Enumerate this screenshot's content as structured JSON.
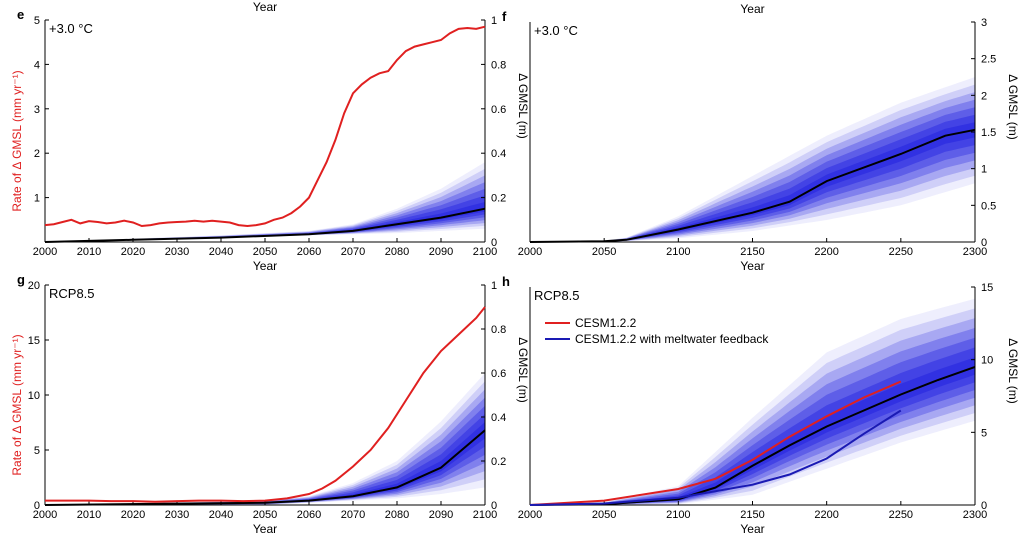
{
  "colors": {
    "rate": "#e02020",
    "median": "#000000",
    "band": "#2020e0",
    "meltwater": "#1a1ab4"
  },
  "chart_data": [
    {
      "id": "e",
      "panel_letter": "e",
      "title": "+3.0 °C",
      "type": "line",
      "xlabel": "Year",
      "top_label": "Year",
      "ylabel_left": "Rate of Δ GMSL (mm yr⁻¹)",
      "ylabel_right": "Δ GMSL (m)",
      "xlim": [
        2000,
        2100
      ],
      "ylim_left": [
        0,
        5
      ],
      "ylim_right": [
        0,
        1
      ],
      "x_ticks": [
        "2000",
        "2010",
        "2020",
        "2030",
        "2040",
        "2050",
        "2060",
        "2070",
        "2080",
        "2090",
        "2100"
      ],
      "y_left_ticks": [
        "1",
        "2",
        "3",
        "4",
        "5"
      ],
      "y_right_ticks": [
        "0",
        "0.2",
        "0.4",
        "0.6",
        "0.8",
        "1"
      ],
      "rate_series": {
        "axis": "left",
        "x": [
          2000,
          2002,
          2004,
          2006,
          2008,
          2010,
          2012,
          2014,
          2016,
          2018,
          2020,
          2022,
          2024,
          2026,
          2028,
          2030,
          2032,
          2034,
          2036,
          2038,
          2040,
          2042,
          2044,
          2046,
          2048,
          2050,
          2052,
          2054,
          2056,
          2058,
          2060,
          2062,
          2064,
          2066,
          2068,
          2070,
          2072,
          2074,
          2076,
          2078,
          2080,
          2082,
          2084,
          2086,
          2088,
          2090,
          2092,
          2094,
          2096,
          2098,
          2100
        ],
        "y": [
          0.38,
          0.4,
          0.45,
          0.5,
          0.42,
          0.47,
          0.45,
          0.42,
          0.44,
          0.48,
          0.44,
          0.36,
          0.38,
          0.42,
          0.44,
          0.45,
          0.46,
          0.48,
          0.46,
          0.48,
          0.46,
          0.44,
          0.38,
          0.36,
          0.38,
          0.42,
          0.5,
          0.55,
          0.65,
          0.8,
          1.0,
          1.4,
          1.8,
          2.3,
          2.9,
          3.35,
          3.55,
          3.7,
          3.8,
          3.85,
          4.1,
          4.3,
          4.4,
          4.45,
          4.5,
          4.55,
          4.7,
          4.8,
          4.82,
          4.8,
          4.85
        ]
      },
      "median": {
        "axis": "right",
        "x": [
          2000,
          2020,
          2040,
          2060,
          2070,
          2080,
          2090,
          2100
        ],
        "y": [
          0,
          0.01,
          0.02,
          0.035,
          0.05,
          0.08,
          0.11,
          0.15
        ]
      },
      "band": {
        "axis": "right",
        "x": [
          2000,
          2020,
          2040,
          2060,
          2070,
          2080,
          2090,
          2100
        ],
        "levels": [
          [
            0,
            0.01,
            0.02,
            0.03,
            0.035,
            0.04,
            0.05,
            0.06
          ],
          [
            0,
            0.015,
            0.03,
            0.05,
            0.08,
            0.15,
            0.24,
            0.36
          ]
        ]
      }
    },
    {
      "id": "f",
      "panel_letter": "f",
      "title": "+3.0 °C",
      "type": "line",
      "xlabel": "Year",
      "top_label": "Year",
      "ylabel_right": "Δ GMSL (m)",
      "xlim": [
        2000,
        2300
      ],
      "ylim_right": [
        0,
        3
      ],
      "x_ticks": [
        "2000",
        "2050",
        "2100",
        "2150",
        "2200",
        "2250",
        "2300"
      ],
      "y_right_ticks": [
        "0",
        "0.5",
        "1",
        "1.5",
        "2",
        "2.5",
        "3"
      ],
      "median": {
        "axis": "right",
        "x": [
          2000,
          2050,
          2065,
          2100,
          2150,
          2175,
          2200,
          2250,
          2280,
          2300
        ],
        "y": [
          0,
          0.01,
          0.03,
          0.17,
          0.4,
          0.55,
          0.83,
          1.2,
          1.45,
          1.53
        ]
      },
      "band": {
        "axis": "right",
        "x": [
          2000,
          2050,
          2065,
          2100,
          2150,
          2200,
          2250,
          2300
        ],
        "levels": [
          [
            0,
            0.0,
            0.01,
            0.05,
            0.15,
            0.3,
            0.5,
            0.8
          ],
          [
            0,
            0.02,
            0.06,
            0.35,
            0.9,
            1.45,
            1.9,
            2.25
          ]
        ]
      }
    },
    {
      "id": "g",
      "panel_letter": "g",
      "title": "RCP8.5",
      "type": "line",
      "xlabel": "Year",
      "ylabel_left": "Rate of Δ GMSL (mm yr⁻¹)",
      "ylabel_right": "Δ GMSL (m)",
      "xlim": [
        2000,
        2100
      ],
      "ylim_left": [
        0,
        20
      ],
      "ylim_right": [
        0,
        1
      ],
      "x_ticks": [
        "2000",
        "2010",
        "2020",
        "2030",
        "2040",
        "2050",
        "2060",
        "2070",
        "2080",
        "2090",
        "2100"
      ],
      "y_left_ticks": [
        "0",
        "5",
        "10",
        "15",
        "20"
      ],
      "y_right_ticks": [
        "0",
        "0.2",
        "0.4",
        "0.6",
        "0.8",
        "1"
      ],
      "rate_series": {
        "axis": "left",
        "x": [
          2000,
          2005,
          2010,
          2015,
          2020,
          2025,
          2030,
          2035,
          2040,
          2045,
          2050,
          2055,
          2060,
          2063,
          2066,
          2070,
          2074,
          2078,
          2082,
          2086,
          2090,
          2094,
          2098,
          2100
        ],
        "y": [
          0.4,
          0.4,
          0.4,
          0.35,
          0.35,
          0.3,
          0.35,
          0.4,
          0.4,
          0.35,
          0.4,
          0.6,
          1.0,
          1.5,
          2.2,
          3.5,
          5.0,
          7.0,
          9.5,
          12.0,
          14.0,
          15.5,
          17.0,
          18.0
        ]
      },
      "median": {
        "axis": "right",
        "x": [
          2000,
          2050,
          2060,
          2070,
          2080,
          2090,
          2100
        ],
        "y": [
          0,
          0.01,
          0.02,
          0.04,
          0.08,
          0.17,
          0.34
        ]
      },
      "band": {
        "axis": "right",
        "x": [
          2000,
          2050,
          2060,
          2070,
          2080,
          2090,
          2100
        ],
        "levels": [
          [
            0,
            0.0,
            0.01,
            0.02,
            0.03,
            0.05,
            0.08
          ],
          [
            0,
            0.02,
            0.04,
            0.1,
            0.2,
            0.38,
            0.6
          ]
        ]
      }
    },
    {
      "id": "h",
      "panel_letter": "h",
      "title": "RCP8.5",
      "type": "line",
      "xlabel": "Year",
      "ylabel_right": "Δ GMSL (m)",
      "xlim": [
        2000,
        2300
      ],
      "ylim_right": [
        0,
        15
      ],
      "x_ticks": [
        "2000",
        "2050",
        "2100",
        "2150",
        "2200",
        "2250",
        "2300"
      ],
      "y_right_ticks": [
        "0",
        "5",
        "10",
        "15"
      ],
      "legend": [
        "CESM1.2.2",
        "CESM1.2.2 with meltwater feedback"
      ],
      "median": {
        "axis": "right",
        "x": [
          2000,
          2050,
          2100,
          2125,
          2150,
          2175,
          2200,
          2225,
          2250,
          2275,
          2300
        ],
        "y": [
          0,
          0.05,
          0.4,
          1.2,
          2.7,
          4.1,
          5.4,
          6.5,
          7.6,
          8.6,
          9.5
        ]
      },
      "band": {
        "axis": "right",
        "x": [
          2000,
          2050,
          2100,
          2150,
          2200,
          2250,
          2300
        ],
        "levels": [
          [
            0,
            0,
            0.05,
            0.7,
            2.5,
            4.3,
            5.8
          ],
          [
            0,
            0.2,
            1.3,
            6.0,
            10.5,
            12.8,
            14.2
          ]
        ]
      },
      "series": [
        {
          "name": "CESM1.2.2",
          "axis": "right",
          "x": [
            2000,
            2050,
            2100,
            2125,
            2150,
            2175,
            2200,
            2225,
            2250
          ],
          "y": [
            0,
            0.3,
            1.1,
            1.8,
            3.1,
            4.7,
            6.1,
            7.4,
            8.5
          ]
        },
        {
          "name": "CESM1.2.2 with meltwater feedback",
          "axis": "right",
          "x": [
            2000,
            2050,
            2100,
            2150,
            2175,
            2200,
            2225,
            2250
          ],
          "y": [
            0,
            0.1,
            0.5,
            1.4,
            2.1,
            3.2,
            4.9,
            6.5
          ]
        }
      ]
    }
  ]
}
